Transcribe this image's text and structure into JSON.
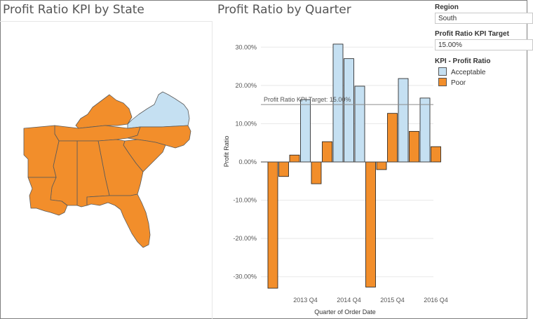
{
  "map": {
    "title": "Profit Ratio KPI by State",
    "states": [
      {
        "name": "Virginia",
        "kpi": "Acceptable"
      },
      {
        "name": "Kentucky",
        "kpi": "Poor"
      },
      {
        "name": "Tennessee",
        "kpi": "Poor"
      },
      {
        "name": "North Carolina",
        "kpi": "Poor"
      },
      {
        "name": "South Carolina",
        "kpi": "Poor"
      },
      {
        "name": "Georgia",
        "kpi": "Poor"
      },
      {
        "name": "Alabama",
        "kpi": "Poor"
      },
      {
        "name": "Mississippi",
        "kpi": "Poor"
      },
      {
        "name": "Arkansas",
        "kpi": "Poor"
      },
      {
        "name": "Louisiana",
        "kpi": "Poor"
      },
      {
        "name": "Florida",
        "kpi": "Poor"
      }
    ]
  },
  "chart": {
    "title": "Profit Ratio by Quarter",
    "target_label": "Profit Ratio KPI Target: 15.00%"
  },
  "filters": {
    "region_label": "Region",
    "region_value": "South",
    "target_label": "Profit Ratio KPI Target",
    "target_value": "15.00%"
  },
  "legend": {
    "title": "KPI - Profit Ratio",
    "items": [
      {
        "label": "Acceptable",
        "color": "#c5e0f2"
      },
      {
        "label": "Poor",
        "color": "#f28e2b"
      }
    ]
  },
  "chart_data": {
    "type": "bar",
    "title": "Profit Ratio by Quarter",
    "xlabel": "Quarter of Order Date",
    "ylabel": "Profit Ratio",
    "ylim": [
      -35,
      35
    ],
    "yticks": [
      30,
      20,
      10,
      0,
      -10,
      -20,
      -30
    ],
    "ytick_labels": [
      "30.00%",
      "20.00%",
      "10.00%",
      "0.00%",
      "-10.00%",
      "-20.00%",
      "-30.00%"
    ],
    "x_tick_labels": [
      "2013 Q4",
      "2014 Q4",
      "2015 Q4",
      "2016 Q4"
    ],
    "target": 15,
    "categories": [
      "2013 Q1",
      "2013 Q2",
      "2013 Q3",
      "2013 Q4",
      "2014 Q1",
      "2014 Q2",
      "2014 Q3",
      "2014 Q4",
      "2015 Q1",
      "2015 Q2",
      "2015 Q3",
      "2015 Q4",
      "2016 Q1",
      "2016 Q2",
      "2016 Q3",
      "2016 Q4"
    ],
    "values": [
      -33.0,
      -3.8,
      1.8,
      16.3,
      -5.7,
      5.3,
      30.8,
      27.0,
      19.8,
      -32.7,
      -2.0,
      12.7,
      21.8,
      8.0,
      16.7,
      4.0
    ],
    "kpi": [
      "Poor",
      "Poor",
      "Poor",
      "Acceptable",
      "Poor",
      "Poor",
      "Acceptable",
      "Acceptable",
      "Acceptable",
      "Poor",
      "Poor",
      "Poor",
      "Acceptable",
      "Poor",
      "Acceptable",
      "Poor"
    ],
    "colors": {
      "Acceptable": "#c5e0f2",
      "Poor": "#f28e2b"
    },
    "grid": true,
    "legend_position": "right"
  }
}
